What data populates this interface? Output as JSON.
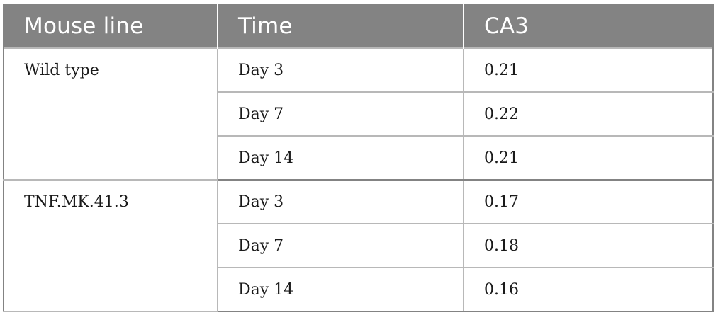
{
  "table": {
    "headers": [
      "Mouse line",
      "Time",
      "CA3"
    ],
    "groups": [
      {
        "mouse_line": "Wild type",
        "rows": [
          {
            "time": "Day 3",
            "ca3": "0.21"
          },
          {
            "time": "Day 7",
            "ca3": "0.22"
          },
          {
            "time": "Day 14",
            "ca3": "0.21"
          }
        ]
      },
      {
        "mouse_line": "TNF.MK.41.3",
        "rows": [
          {
            "time": "Day 3",
            "ca3": "0.17"
          },
          {
            "time": "Day 7",
            "ca3": "0.18"
          },
          {
            "time": "Day 14",
            "ca3": "0.16"
          }
        ]
      }
    ]
  },
  "colors": {
    "header_bg": "#838383",
    "header_text": "#ffffff",
    "grid_line": "#b8b8b8",
    "body_text": "#1a1a1a"
  }
}
